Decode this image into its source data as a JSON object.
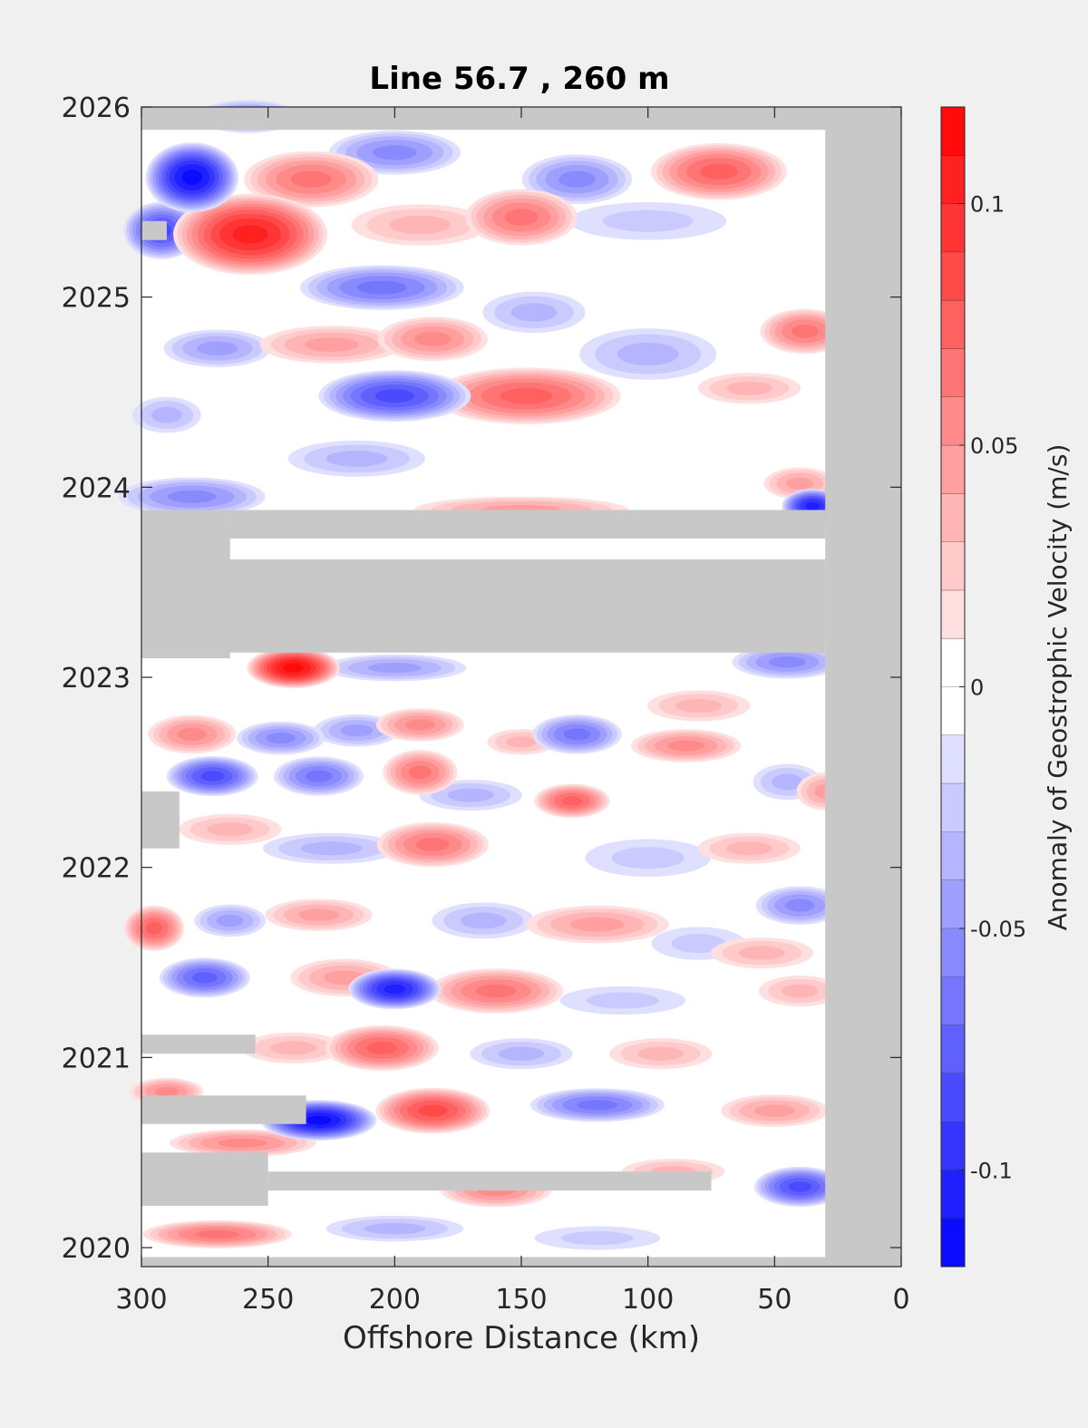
{
  "chart_data": {
    "type": "heatmap",
    "title": "Line 56.7 , 260 m",
    "xlabel": "Offshore Distance (km)",
    "ylabel": "",
    "xlim": [
      300,
      0
    ],
    "ylim": [
      2019.9,
      2026
    ],
    "x_ticks": [
      "300",
      "250",
      "200",
      "150",
      "100",
      "50",
      "0"
    ],
    "x_tick_values": [
      300,
      250,
      200,
      150,
      100,
      50,
      0
    ],
    "y_ticks": [
      "2020",
      "2021",
      "2022",
      "2023",
      "2024",
      "2025",
      "2026"
    ],
    "y_tick_values": [
      2020,
      2021,
      2022,
      2023,
      2024,
      2025,
      2026
    ],
    "colorbar": {
      "label": "Anomaly of Geostrophic Velocity (m/s)",
      "range": [
        -0.12,
        0.12
      ],
      "levels": 24,
      "ticks": [
        "0.1",
        "0.05",
        "0",
        "-0.05",
        "-0.1"
      ],
      "tick_values": [
        0.1,
        0.05,
        0,
        -0.05,
        -0.1
      ],
      "colormap": "blue-white-red",
      "color_min": "#0000ff",
      "color_mid": "#ffffff",
      "color_max": "#ff0000"
    },
    "no_data_color": "#c8c8c8",
    "blobs": [
      {
        "x": 280,
        "y": 2025.63,
        "v": -0.11,
        "sx": 12,
        "sy": 0.12
      },
      {
        "x": 257,
        "y": 2025.33,
        "v": 0.1,
        "sx": 20,
        "sy": 0.14
      },
      {
        "x": 292,
        "y": 2025.35,
        "v": -0.08,
        "sx": 10,
        "sy": 0.1
      },
      {
        "x": 233,
        "y": 2025.62,
        "v": 0.06,
        "sx": 18,
        "sy": 0.1
      },
      {
        "x": 200,
        "y": 2025.76,
        "v": -0.05,
        "sx": 18,
        "sy": 0.08
      },
      {
        "x": 258,
        "y": 2025.95,
        "v": -0.05,
        "sx": 14,
        "sy": 0.06
      },
      {
        "x": 150,
        "y": 2025.42,
        "v": 0.06,
        "sx": 15,
        "sy": 0.1
      },
      {
        "x": 128,
        "y": 2025.62,
        "v": -0.05,
        "sx": 15,
        "sy": 0.09
      },
      {
        "x": 72,
        "y": 2025.66,
        "v": 0.07,
        "sx": 18,
        "sy": 0.1
      },
      {
        "x": 100,
        "y": 2025.4,
        "v": -0.02,
        "sx": 25,
        "sy": 0.08
      },
      {
        "x": 190,
        "y": 2025.38,
        "v": 0.03,
        "sx": 20,
        "sy": 0.08
      },
      {
        "x": 205,
        "y": 2025.05,
        "v": -0.06,
        "sx": 22,
        "sy": 0.08
      },
      {
        "x": 270,
        "y": 2024.73,
        "v": -0.04,
        "sx": 15,
        "sy": 0.07
      },
      {
        "x": 225,
        "y": 2024.75,
        "v": 0.04,
        "sx": 20,
        "sy": 0.07
      },
      {
        "x": 185,
        "y": 2024.78,
        "v": 0.05,
        "sx": 15,
        "sy": 0.08
      },
      {
        "x": 200,
        "y": 2024.48,
        "v": -0.08,
        "sx": 20,
        "sy": 0.09
      },
      {
        "x": 148,
        "y": 2024.48,
        "v": 0.07,
        "sx": 25,
        "sy": 0.1
      },
      {
        "x": 145,
        "y": 2024.92,
        "v": -0.03,
        "sx": 15,
        "sy": 0.08
      },
      {
        "x": 100,
        "y": 2024.7,
        "v": -0.03,
        "sx": 20,
        "sy": 0.1
      },
      {
        "x": 38,
        "y": 2024.82,
        "v": 0.06,
        "sx": 12,
        "sy": 0.08
      },
      {
        "x": 60,
        "y": 2024.52,
        "v": 0.03,
        "sx": 15,
        "sy": 0.06
      },
      {
        "x": 290,
        "y": 2024.38,
        "v": -0.03,
        "sx": 10,
        "sy": 0.07
      },
      {
        "x": 215,
        "y": 2024.15,
        "v": -0.03,
        "sx": 20,
        "sy": 0.07
      },
      {
        "x": 40,
        "y": 2024.02,
        "v": 0.04,
        "sx": 10,
        "sy": 0.06
      },
      {
        "x": 35,
        "y": 2023.9,
        "v": -0.1,
        "sx": 8,
        "sy": 0.06
      },
      {
        "x": 280,
        "y": 2023.95,
        "v": -0.05,
        "sx": 20,
        "sy": 0.07
      },
      {
        "x": 150,
        "y": 2023.88,
        "v": 0.04,
        "sx": 30,
        "sy": 0.05
      },
      {
        "x": 240,
        "y": 2023.05,
        "v": 0.11,
        "sx": 12,
        "sy": 0.07
      },
      {
        "x": 200,
        "y": 2023.05,
        "v": -0.04,
        "sx": 20,
        "sy": 0.05
      },
      {
        "x": 45,
        "y": 2023.08,
        "v": -0.05,
        "sx": 15,
        "sy": 0.06
      },
      {
        "x": 80,
        "y": 2022.85,
        "v": 0.03,
        "sx": 15,
        "sy": 0.06
      },
      {
        "x": 280,
        "y": 2022.7,
        "v": 0.05,
        "sx": 12,
        "sy": 0.07
      },
      {
        "x": 245,
        "y": 2022.68,
        "v": -0.05,
        "sx": 12,
        "sy": 0.06
      },
      {
        "x": 215,
        "y": 2022.72,
        "v": -0.04,
        "sx": 12,
        "sy": 0.06
      },
      {
        "x": 190,
        "y": 2022.75,
        "v": 0.05,
        "sx": 12,
        "sy": 0.06
      },
      {
        "x": 128,
        "y": 2022.7,
        "v": -0.06,
        "sx": 12,
        "sy": 0.07
      },
      {
        "x": 85,
        "y": 2022.64,
        "v": 0.05,
        "sx": 15,
        "sy": 0.06
      },
      {
        "x": 150,
        "y": 2022.66,
        "v": 0.03,
        "sx": 10,
        "sy": 0.05
      },
      {
        "x": 272,
        "y": 2022.48,
        "v": -0.08,
        "sx": 12,
        "sy": 0.07
      },
      {
        "x": 230,
        "y": 2022.48,
        "v": -0.06,
        "sx": 12,
        "sy": 0.07
      },
      {
        "x": 190,
        "y": 2022.5,
        "v": 0.06,
        "sx": 10,
        "sy": 0.08
      },
      {
        "x": 130,
        "y": 2022.35,
        "v": 0.07,
        "sx": 10,
        "sy": 0.06
      },
      {
        "x": 170,
        "y": 2022.38,
        "v": -0.03,
        "sx": 15,
        "sy": 0.06
      },
      {
        "x": 45,
        "y": 2022.45,
        "v": -0.03,
        "sx": 10,
        "sy": 0.07
      },
      {
        "x": 30,
        "y": 2022.4,
        "v": 0.04,
        "sx": 8,
        "sy": 0.07
      },
      {
        "x": 185,
        "y": 2022.12,
        "v": 0.06,
        "sx": 15,
        "sy": 0.08
      },
      {
        "x": 225,
        "y": 2022.1,
        "v": -0.03,
        "sx": 20,
        "sy": 0.06
      },
      {
        "x": 265,
        "y": 2022.2,
        "v": 0.03,
        "sx": 15,
        "sy": 0.06
      },
      {
        "x": 100,
        "y": 2022.05,
        "v": -0.02,
        "sx": 20,
        "sy": 0.08
      },
      {
        "x": 60,
        "y": 2022.1,
        "v": 0.03,
        "sx": 15,
        "sy": 0.06
      },
      {
        "x": 295,
        "y": 2021.68,
        "v": 0.07,
        "sx": 8,
        "sy": 0.08
      },
      {
        "x": 265,
        "y": 2021.72,
        "v": -0.04,
        "sx": 10,
        "sy": 0.06
      },
      {
        "x": 230,
        "y": 2021.75,
        "v": 0.04,
        "sx": 15,
        "sy": 0.06
      },
      {
        "x": 165,
        "y": 2021.72,
        "v": -0.03,
        "sx": 15,
        "sy": 0.07
      },
      {
        "x": 120,
        "y": 2021.7,
        "v": 0.04,
        "sx": 20,
        "sy": 0.07
      },
      {
        "x": 40,
        "y": 2021.8,
        "v": -0.05,
        "sx": 12,
        "sy": 0.07
      },
      {
        "x": 80,
        "y": 2021.6,
        "v": -0.02,
        "sx": 15,
        "sy": 0.07
      },
      {
        "x": 55,
        "y": 2021.55,
        "v": 0.03,
        "sx": 15,
        "sy": 0.06
      },
      {
        "x": 275,
        "y": 2021.42,
        "v": -0.07,
        "sx": 12,
        "sy": 0.07
      },
      {
        "x": 220,
        "y": 2021.42,
        "v": 0.04,
        "sx": 15,
        "sy": 0.07
      },
      {
        "x": 200,
        "y": 2021.36,
        "v": -0.1,
        "sx": 12,
        "sy": 0.07
      },
      {
        "x": 160,
        "y": 2021.35,
        "v": 0.06,
        "sx": 18,
        "sy": 0.08
      },
      {
        "x": 110,
        "y": 2021.3,
        "v": -0.02,
        "sx": 20,
        "sy": 0.06
      },
      {
        "x": 40,
        "y": 2021.35,
        "v": 0.03,
        "sx": 12,
        "sy": 0.06
      },
      {
        "x": 205,
        "y": 2021.05,
        "v": 0.07,
        "sx": 15,
        "sy": 0.08
      },
      {
        "x": 240,
        "y": 2021.05,
        "v": 0.03,
        "sx": 15,
        "sy": 0.06
      },
      {
        "x": 150,
        "y": 2021.02,
        "v": -0.03,
        "sx": 15,
        "sy": 0.06
      },
      {
        "x": 95,
        "y": 2021.02,
        "v": 0.03,
        "sx": 15,
        "sy": 0.06
      },
      {
        "x": 230,
        "y": 2020.67,
        "v": -0.11,
        "sx": 15,
        "sy": 0.07
      },
      {
        "x": 185,
        "y": 2020.72,
        "v": 0.08,
        "sx": 15,
        "sy": 0.08
      },
      {
        "x": 120,
        "y": 2020.75,
        "v": -0.06,
        "sx": 18,
        "sy": 0.06
      },
      {
        "x": 50,
        "y": 2020.72,
        "v": 0.04,
        "sx": 15,
        "sy": 0.06
      },
      {
        "x": 290,
        "y": 2020.82,
        "v": 0.05,
        "sx": 10,
        "sy": 0.05
      },
      {
        "x": 40,
        "y": 2020.32,
        "v": -0.08,
        "sx": 12,
        "sy": 0.07
      },
      {
        "x": 160,
        "y": 2020.3,
        "v": 0.05,
        "sx": 15,
        "sy": 0.06
      },
      {
        "x": 260,
        "y": 2020.55,
        "v": 0.05,
        "sx": 20,
        "sy": 0.05
      },
      {
        "x": 270,
        "y": 2020.07,
        "v": 0.06,
        "sx": 20,
        "sy": 0.05
      },
      {
        "x": 200,
        "y": 2020.1,
        "v": -0.03,
        "sx": 20,
        "sy": 0.05
      },
      {
        "x": 120,
        "y": 2020.05,
        "v": -0.02,
        "sx": 20,
        "sy": 0.05
      },
      {
        "x": 280,
        "y": 2020.3,
        "v": -0.03,
        "sx": 15,
        "sy": 0.05
      },
      {
        "x": 90,
        "y": 2020.4,
        "v": 0.03,
        "sx": 15,
        "sy": 0.05
      }
    ],
    "gaps": [
      {
        "x": [
          300,
          0
        ],
        "y": [
          2025.88,
          2026.0
        ]
      },
      {
        "x": [
          30,
          0
        ],
        "y": [
          2019.9,
          2026.0
        ]
      },
      {
        "x": [
          300,
          0
        ],
        "y": [
          2019.9,
          2019.95
        ]
      },
      {
        "x": [
          300,
          30
        ],
        "y": [
          2023.13,
          2023.62
        ]
      },
      {
        "x": [
          300,
          265
        ],
        "y": [
          2023.1,
          2023.88
        ]
      },
      {
        "x": [
          265,
          30
        ],
        "y": [
          2023.76,
          2023.88
        ]
      },
      {
        "x": [
          300,
          30
        ],
        "y": [
          2023.73,
          2023.8
        ]
      },
      {
        "x": [
          300,
          285
        ],
        "y": [
          2022.1,
          2022.4
        ]
      },
      {
        "x": [
          300,
          255
        ],
        "y": [
          2021.02,
          2021.12
        ]
      },
      {
        "x": [
          300,
          235
        ],
        "y": [
          2020.65,
          2020.8
        ]
      },
      {
        "x": [
          300,
          250
        ],
        "y": [
          2020.22,
          2020.5
        ]
      },
      {
        "x": [
          250,
          75
        ],
        "y": [
          2020.3,
          2020.4
        ]
      },
      {
        "x": [
          300,
          290
        ],
        "y": [
          2025.3,
          2025.4
        ]
      }
    ]
  }
}
